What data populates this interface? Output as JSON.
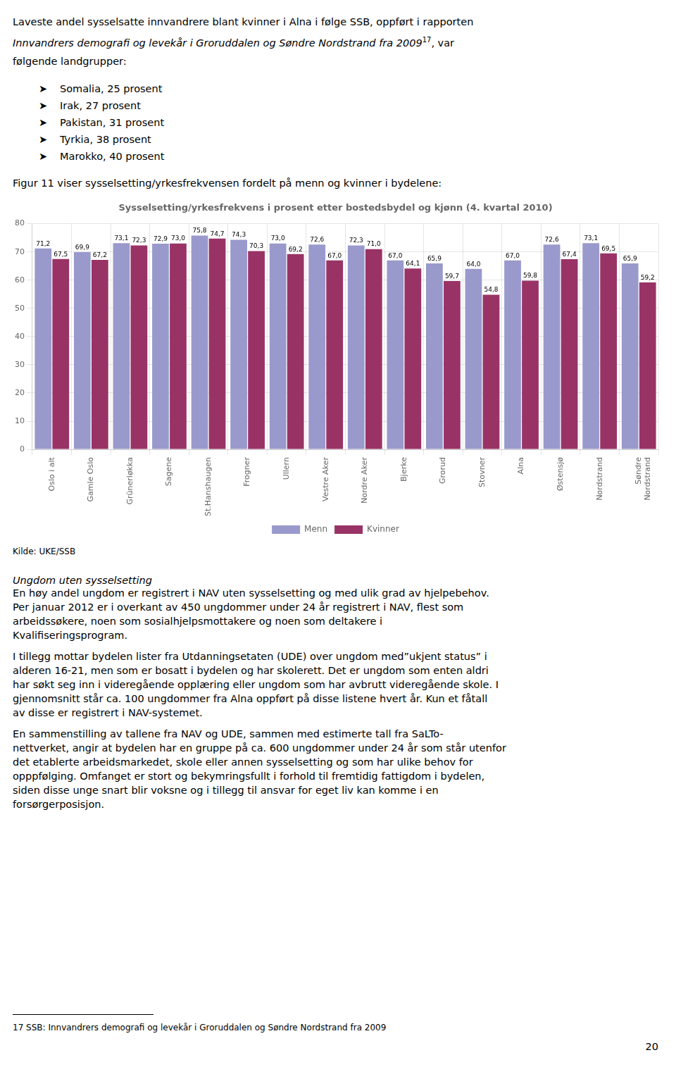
{
  "para1_line1": "Laveste andel sysselsatte innvandrere blant kvinner i Alna i følge SSB, oppført i rapporten",
  "para1_line2": "Innvandrers demografi og levekår i Groruddalen og Søndre Nordstrand fra 2009",
  "para1_super": "17",
  "para1_line3": ", var",
  "para1_line4": "følgende landgrupper:",
  "bullet_symbol": "➤",
  "bullets": [
    "Somalia, 25 prosent",
    "Irak, 27 prosent",
    "Pakistan, 31 prosent",
    "Tyrkia, 38 prosent",
    "Marokko, 40 prosent"
  ],
  "fig_caption": "Figur 11 viser sysselsetting/yrkesfrekvensen fordelt på menn og kvinner i bydelene:",
  "source_label": "Kilde: UKE/SSB",
  "section_title": "Ungdom uten sysselsetting",
  "body_paragraphs": [
    [
      "En høy andel ungdom er registrert i NAV uten sysselsetting og med ulik grad av hjelpebehov.",
      "Per januar 2012 er i overkant av 450 ungdommer under 24 år registrert i NAV, flest som",
      "arbeidssøkere, noen som sosialhjelpsmottakere og noen som deltakere i",
      "Kvalifiseringsprogram."
    ],
    [
      "I tillegg mottar bydelen lister fra Utdanningsetaten (UDE) over ungdom med”ukjent status” i",
      "alderen 16-21, men som er bosatt i bydelen og har skolerett. Det er ungdom som enten aldri",
      "har søkt seg inn i videregående opplæring eller ungdom som har avbrutt videregående skole. I",
      "gjennomsnitt står ca. 100 ungdommer fra Alna oppført på disse listene hvert år. Kun et fåtall",
      "av disse er registrert i NAV-systemet."
    ],
    [
      "En sammenstilling av tallene fra NAV og UDE, sammen med estimerte tall fra SaLTo-",
      "nettverket, angir at bydelen har en gruppe på ca. 600 ungdommer under 24 år som står utenfor",
      "det etablerte arbeidsmarkedet, skole eller annen sysselsetting og som har ulike behov for",
      "opppfølging. Omfanget er stort og bekymringsfullt i forhold til fremtidig fattigdom i bydelen,",
      "siden disse unge snart blir voksne og i tillegg til ansvar for eget liv kan komme i en",
      "forsørgerposisjon."
    ]
  ],
  "footnote": "17 SSB: Innvandrers demografi og levekår i Groruddalen og Søndre Nordstrand fra 2009",
  "page_number": "20",
  "chart_data": {
    "type": "bar",
    "title": "Sysselsetting/yrkesfrekvens i prosent etter bostedsbydel og kjønn (4. kvartal 2010)",
    "categories": [
      "Oslo i alt",
      "Gamle Oslo",
      "Grünerløkka",
      "Sagene",
      "St.Hanshaugen",
      "Frogner",
      "Ullern",
      "Vestre Aker",
      "Nordre Aker",
      "Bjerke",
      "Grorud",
      "Stovner",
      "Alna",
      "Østensjø",
      "Nordstrand",
      "Søndre\nNordstrand"
    ],
    "series": [
      {
        "name": "Menn",
        "color": "#9999cc",
        "values": [
          71.2,
          69.9,
          73.1,
          72.9,
          75.8,
          74.3,
          73.0,
          72.6,
          72.3,
          67.0,
          65.9,
          64.0,
          67.0,
          72.6,
          73.1,
          65.9
        ],
        "value_labels": [
          "71,2",
          "69,9",
          "73,1",
          "72,9",
          "75,8",
          "74,3",
          "73,0",
          "72,6",
          "72,3",
          "67,0",
          "65,9",
          "64,0",
          "67,0",
          "72,6",
          "73,1",
          "65,9"
        ]
      },
      {
        "name": "Kvinner",
        "color": "#993366",
        "values": [
          67.5,
          67.2,
          72.3,
          73.0,
          74.7,
          70.3,
          69.2,
          67.0,
          71.0,
          64.1,
          59.7,
          54.8,
          59.8,
          67.4,
          69.5,
          59.2
        ],
        "value_labels": [
          "67,5",
          "67,2",
          "72,3",
          "73,0",
          "74,7",
          "70,3",
          "69,2",
          "67,0",
          "71,0",
          "64,1",
          "59,7",
          "54,8",
          "59,8",
          "67,4",
          "69,5",
          "59,2"
        ]
      }
    ],
    "ylim": [
      0,
      80
    ],
    "yticks": [
      0,
      10,
      20,
      30,
      40,
      50,
      60,
      70,
      80
    ],
    "grid": true,
    "legend": "bottom",
    "data_labels": true
  }
}
